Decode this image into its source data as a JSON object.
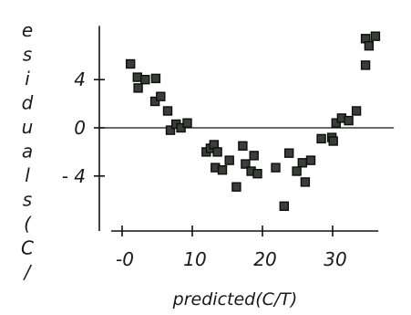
{
  "chart_data": {
    "type": "scatter",
    "title": "",
    "xlabel": "predicted(C/T)",
    "ylabel": "esiduals(C/",
    "xlim": [
      -2,
      36
    ],
    "ylim": [
      -7.5,
      8
    ],
    "x_ticks": [
      0,
      10,
      20,
      30
    ],
    "x_tick_labels": [
      "-0",
      "10",
      "20",
      "30"
    ],
    "y_ticks": [
      4,
      0,
      -4
    ],
    "y_tick_labels": [
      "4",
      "0",
      "- 4"
    ],
    "zero_reference_line": true,
    "grid": false,
    "series": [
      {
        "points": [
          {
            "x": -0.5,
            "y": 5.3
          },
          {
            "x": 0.5,
            "y": 4.2
          },
          {
            "x": 0.6,
            "y": 3.3
          },
          {
            "x": 1.6,
            "y": 4.0
          },
          {
            "x": 3.1,
            "y": 4.1
          },
          {
            "x": 3.0,
            "y": 2.2
          },
          {
            "x": 3.8,
            "y": 2.6
          },
          {
            "x": 4.8,
            "y": 1.4
          },
          {
            "x": 5.2,
            "y": -0.2
          },
          {
            "x": 6.0,
            "y": 0.3
          },
          {
            "x": 6.7,
            "y": 0.0
          },
          {
            "x": 7.6,
            "y": 0.4
          },
          {
            "x": 10.3,
            "y": -2.0
          },
          {
            "x": 10.9,
            "y": -1.7
          },
          {
            "x": 11.4,
            "y": -1.4
          },
          {
            "x": 11.9,
            "y": -2.0
          },
          {
            "x": 11.6,
            "y": -3.3
          },
          {
            "x": 12.6,
            "y": -3.5
          },
          {
            "x": 13.6,
            "y": -2.7
          },
          {
            "x": 14.6,
            "y": -4.9
          },
          {
            "x": 15.5,
            "y": -1.5
          },
          {
            "x": 15.9,
            "y": -3.0
          },
          {
            "x": 16.7,
            "y": -3.6
          },
          {
            "x": 17.1,
            "y": -2.3
          },
          {
            "x": 17.6,
            "y": -3.8
          },
          {
            "x": 20.2,
            "y": -3.3
          },
          {
            "x": 21.4,
            "y": -6.5
          },
          {
            "x": 22.1,
            "y": -2.1
          },
          {
            "x": 23.2,
            "y": -3.6
          },
          {
            "x": 24.0,
            "y": -2.9
          },
          {
            "x": 24.4,
            "y": -4.5
          },
          {
            "x": 25.2,
            "y": -2.7
          },
          {
            "x": 26.7,
            "y": -0.9
          },
          {
            "x": 28.2,
            "y": -0.8
          },
          {
            "x": 28.4,
            "y": -1.1
          },
          {
            "x": 28.8,
            "y": 0.4
          },
          {
            "x": 29.6,
            "y": 0.8
          },
          {
            "x": 30.6,
            "y": 0.6
          },
          {
            "x": 31.7,
            "y": 1.4
          },
          {
            "x": 33.0,
            "y": 7.4
          },
          {
            "x": 33.5,
            "y": 6.8
          },
          {
            "x": 34.4,
            "y": 7.6
          },
          {
            "x": 33.0,
            "y": 5.2
          }
        ]
      }
    ],
    "colors": {
      "marker_fill": "#3a3d3a",
      "marker_edge": "#0d0d0d",
      "axis": "#111111",
      "text": "#1a1a1a",
      "background": "#ffffff"
    }
  }
}
